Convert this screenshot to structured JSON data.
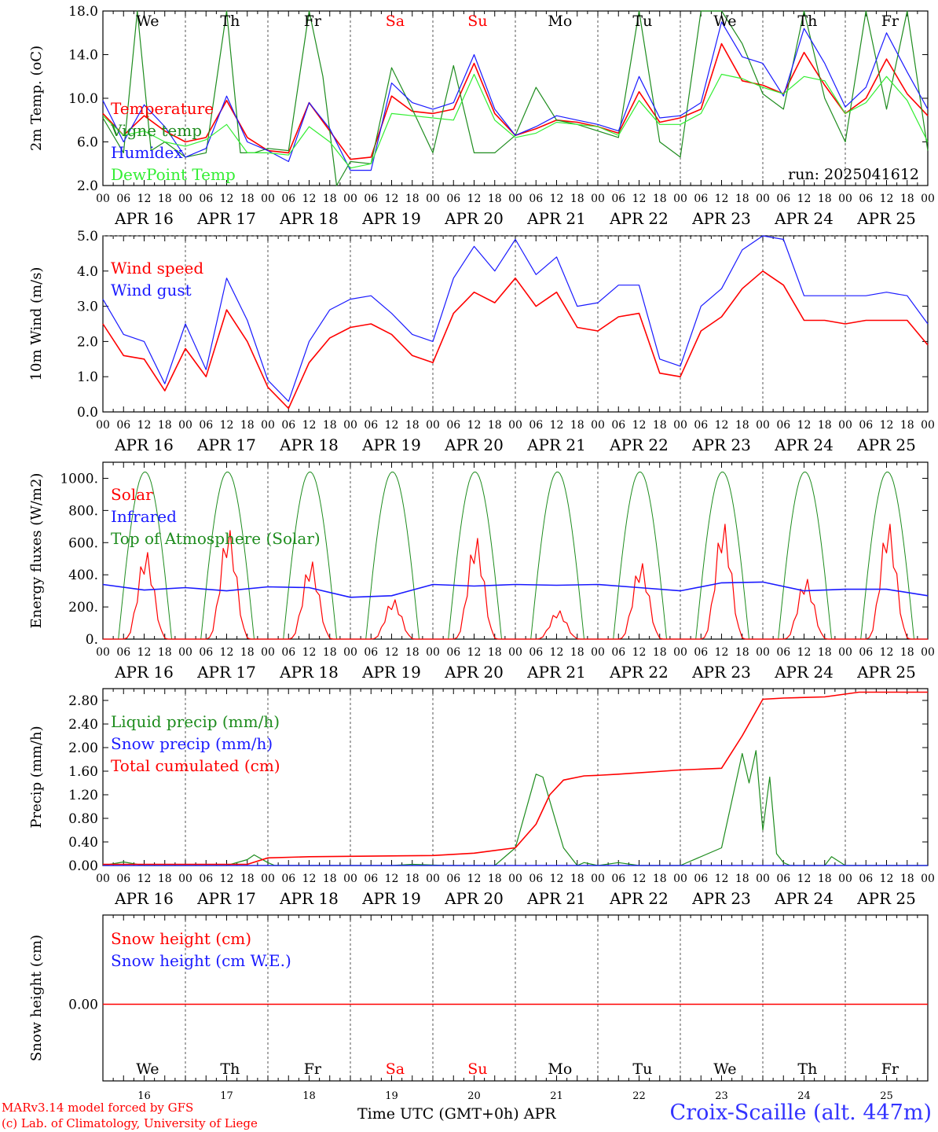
{
  "footer": {
    "credit_line1": "MARv3.14 model forced by GFS",
    "credit_line2": "(c) Lab. of Climatology, University of Liege",
    "x_title": "Time UTC (GMT+0h) APR",
    "station": "Croix-Scaille (alt. 447m)"
  },
  "colors": {
    "red": "#ff0000",
    "dark_green": "#1e8c1e",
    "blue": "#1a1aff",
    "light_green": "#33ee33",
    "axis": "#000000"
  },
  "chart_data": [
    {
      "type": "line",
      "panel": "temperature",
      "ylabel": "2m Temp. (oC)",
      "ylim": [
        2.0,
        18.0
      ],
      "yticks": [
        "2.0",
        "6.0",
        "10.0",
        "14.0",
        "18.0"
      ],
      "annotation": "run: 2025041612",
      "x_unit": "hours since APR 16 00 UTC",
      "day_names": [
        "We",
        "Th",
        "Fr",
        "Sa",
        "Su",
        "Mo",
        "Tu",
        "We",
        "Th",
        "Fr"
      ],
      "weekend_days": [
        3,
        4
      ],
      "date_labels": [
        "APR 16",
        "APR 17",
        "APR 18",
        "APR 19",
        "APR 20",
        "APR 21",
        "APR 22",
        "APR 23",
        "APR 24",
        "APR 25"
      ],
      "hour_ticks": [
        "00",
        "06",
        "12",
        "18"
      ],
      "series": [
        {
          "name": "Temperature",
          "color": "red",
          "x": [
            0,
            6,
            12,
            18,
            24,
            30,
            36,
            42,
            48,
            54,
            60,
            66,
            72,
            78,
            84,
            90,
            96,
            102,
            108,
            114,
            120,
            126,
            132,
            138,
            144,
            150,
            156,
            162,
            168,
            174,
            180,
            186,
            192,
            198,
            204,
            210,
            216,
            222,
            228,
            234,
            240
          ],
          "y": [
            8.6,
            6.6,
            8.4,
            7.0,
            6.0,
            6.4,
            9.8,
            6.4,
            5.2,
            5.0,
            9.6,
            7.0,
            4.4,
            4.6,
            10.2,
            8.8,
            8.6,
            9.0,
            13.2,
            8.6,
            6.6,
            7.2,
            8.0,
            7.8,
            7.4,
            6.8,
            10.6,
            7.8,
            8.2,
            9.0,
            15.0,
            11.6,
            11.2,
            10.4,
            14.2,
            11.2,
            8.6,
            10.0,
            13.6,
            10.4,
            8.4
          ]
        },
        {
          "name": "Vigne temp",
          "color": "dark_green",
          "x": [
            0,
            6,
            10,
            14,
            18,
            24,
            30,
            36,
            40,
            44,
            48,
            54,
            60,
            64,
            68,
            72,
            78,
            84,
            90,
            96,
            102,
            108,
            114,
            120,
            126,
            132,
            138,
            144,
            150,
            156,
            162,
            168,
            174,
            180,
            186,
            192,
            198,
            204,
            210,
            216,
            222,
            228,
            234,
            240
          ],
          "y": [
            8.2,
            5.0,
            18.0,
            5.2,
            6.0,
            4.6,
            5.0,
            18.0,
            5.0,
            5.0,
            5.4,
            5.2,
            18.0,
            12.0,
            1.5,
            4.2,
            4.0,
            12.8,
            9.0,
            5.0,
            13.0,
            5.0,
            5.0,
            6.6,
            11.0,
            8.0,
            7.6,
            7.0,
            6.4,
            18.0,
            6.0,
            4.6,
            18.0,
            18.0,
            15.0,
            10.4,
            9.0,
            18.0,
            10.0,
            6.0,
            18.0,
            9.0,
            18.0,
            5.2
          ]
        },
        {
          "name": "Humidex",
          "color": "blue",
          "x": [
            0,
            6,
            12,
            18,
            24,
            30,
            36,
            42,
            48,
            54,
            60,
            66,
            72,
            78,
            84,
            90,
            96,
            102,
            108,
            114,
            120,
            126,
            132,
            138,
            144,
            150,
            156,
            162,
            168,
            174,
            180,
            186,
            192,
            198,
            204,
            210,
            216,
            222,
            228,
            234,
            240
          ],
          "y": [
            9.8,
            6.0,
            9.4,
            7.4,
            4.6,
            5.4,
            10.2,
            6.0,
            5.2,
            4.2,
            9.6,
            7.2,
            3.4,
            3.4,
            11.4,
            9.6,
            9.0,
            9.6,
            14.0,
            9.0,
            6.6,
            7.4,
            8.4,
            8.0,
            7.6,
            7.0,
            12.0,
            8.2,
            8.4,
            9.6,
            17.0,
            13.8,
            13.2,
            10.2,
            16.4,
            13.2,
            9.2,
            11.0,
            16.0,
            12.4,
            9.0
          ]
        },
        {
          "name": "DewPoint Temp",
          "color": "light_green",
          "x": [
            0,
            6,
            12,
            18,
            24,
            30,
            36,
            42,
            48,
            54,
            60,
            66,
            72,
            78,
            84,
            90,
            96,
            102,
            108,
            114,
            120,
            126,
            132,
            138,
            144,
            150,
            156,
            162,
            168,
            174,
            180,
            186,
            192,
            198,
            204,
            210,
            216,
            222,
            228,
            234,
            240
          ],
          "y": [
            8.4,
            6.6,
            7.0,
            6.0,
            5.6,
            6.2,
            7.6,
            5.0,
            5.0,
            4.8,
            7.4,
            6.0,
            3.6,
            4.0,
            8.6,
            8.4,
            8.2,
            8.0,
            12.2,
            8.0,
            6.4,
            6.8,
            7.8,
            7.6,
            7.4,
            6.6,
            9.8,
            7.6,
            7.6,
            8.6,
            12.2,
            11.8,
            11.0,
            10.4,
            12.0,
            11.6,
            8.6,
            9.6,
            12.0,
            9.8,
            6.0
          ]
        }
      ]
    },
    {
      "type": "line",
      "panel": "wind",
      "ylabel": "10m Wind (m/s)",
      "ylim": [
        0.0,
        5.0
      ],
      "yticks": [
        "0.0",
        "1.0",
        "2.0",
        "3.0",
        "4.0",
        "5.0"
      ],
      "date_labels": [
        "APR 16",
        "APR 17",
        "APR 18",
        "APR 19",
        "APR 20",
        "APR 21",
        "APR 22",
        "APR 23",
        "APR 24",
        "APR 25"
      ],
      "hour_ticks": [
        "00",
        "06",
        "12",
        "18"
      ],
      "series": [
        {
          "name": "Wind speed",
          "color": "red",
          "x": [
            0,
            6,
            12,
            18,
            24,
            30,
            36,
            42,
            48,
            54,
            60,
            66,
            72,
            78,
            84,
            90,
            96,
            102,
            108,
            114,
            120,
            126,
            132,
            138,
            144,
            150,
            156,
            162,
            168,
            174,
            180,
            186,
            192,
            198,
            204,
            210,
            216,
            222,
            228,
            234,
            240
          ],
          "y": [
            2.5,
            1.6,
            1.5,
            0.6,
            1.8,
            1.0,
            2.9,
            2.0,
            0.7,
            0.1,
            1.4,
            2.1,
            2.4,
            2.5,
            2.2,
            1.6,
            1.4,
            2.8,
            3.4,
            3.1,
            3.8,
            3.0,
            3.4,
            2.4,
            2.3,
            2.7,
            2.8,
            1.1,
            1.0,
            2.3,
            2.7,
            3.5,
            4.0,
            3.6,
            2.6,
            2.6,
            2.5,
            2.6,
            2.6,
            2.6,
            1.9
          ]
        },
        {
          "name": "Wind gust",
          "color": "blue",
          "x": [
            0,
            6,
            12,
            18,
            24,
            30,
            36,
            42,
            48,
            54,
            60,
            66,
            72,
            78,
            84,
            90,
            96,
            102,
            108,
            114,
            120,
            126,
            132,
            138,
            144,
            150,
            156,
            162,
            168,
            174,
            180,
            186,
            192,
            198,
            204,
            210,
            216,
            222,
            228,
            234,
            240
          ],
          "y": [
            3.2,
            2.2,
            2.0,
            0.8,
            2.5,
            1.2,
            3.8,
            2.6,
            0.9,
            0.3,
            2.0,
            2.9,
            3.2,
            3.3,
            2.8,
            2.2,
            2.0,
            3.8,
            4.7,
            4.0,
            4.9,
            3.9,
            4.4,
            3.0,
            3.1,
            3.6,
            3.6,
            1.5,
            1.3,
            3.0,
            3.5,
            4.6,
            5.2,
            4.9,
            3.3,
            3.3,
            3.3,
            3.3,
            3.4,
            3.3,
            2.5
          ]
        }
      ]
    },
    {
      "type": "line",
      "panel": "energy",
      "ylabel": "Energy fluxes (W/m2)",
      "ylim": [
        0,
        1100
      ],
      "yticks": [
        "0.",
        "200.",
        "400.",
        "600.",
        "800.",
        "1000."
      ],
      "yvalues": [
        0,
        200,
        400,
        600,
        800,
        1000
      ],
      "date_labels": [
        "APR 16",
        "APR 17",
        "APR 18",
        "APR 19",
        "APR 20",
        "APR 21",
        "APR 22",
        "APR 23",
        "APR 24",
        "APR 25"
      ],
      "hour_ticks": [
        "00",
        "06",
        "12",
        "18"
      ],
      "solar_peaks": [
        550,
        690,
        490,
        250,
        640,
        180,
        480,
        730,
        380,
        730
      ],
      "toa_peak": 1040,
      "series": [
        {
          "name": "Solar",
          "color": "red"
        },
        {
          "name": "Infrared",
          "color": "blue",
          "x": [
            0,
            12,
            24,
            36,
            48,
            60,
            72,
            84,
            96,
            108,
            120,
            132,
            144,
            156,
            168,
            180,
            192,
            204,
            216,
            228,
            240
          ],
          "y": [
            340,
            305,
            320,
            300,
            325,
            320,
            260,
            270,
            340,
            330,
            340,
            335,
            340,
            320,
            300,
            350,
            355,
            300,
            310,
            310,
            270
          ]
        },
        {
          "name": "Top of Atmosphere (Solar)",
          "color": "dark_green"
        }
      ]
    },
    {
      "type": "line",
      "panel": "precip",
      "ylabel": "Precip (mm/h)",
      "ylim": [
        0.0,
        3.0
      ],
      "yticks": [
        "0.00",
        "0.40",
        "0.80",
        "1.20",
        "1.60",
        "2.00",
        "2.40",
        "2.80"
      ],
      "date_labels": [
        "APR 16",
        "APR 17",
        "APR 18",
        "APR 19",
        "APR 20",
        "APR 21",
        "APR 22",
        "APR 23",
        "APR 24",
        "APR 25"
      ],
      "hour_ticks": [
        "00",
        "06",
        "12",
        "18"
      ],
      "series": [
        {
          "name": "Liquid precip (mm/h)",
          "color": "dark_green",
          "x": [
            0,
            6,
            12,
            18,
            24,
            30,
            36,
            42,
            44,
            48,
            50,
            60,
            84,
            90,
            100,
            114,
            120,
            126,
            128,
            132,
            134,
            138,
            140,
            144,
            150,
            156,
            168,
            180,
            186,
            188,
            190,
            192,
            194,
            196,
            198,
            200,
            210,
            212,
            216,
            240
          ],
          "y": [
            0.0,
            0.06,
            0.0,
            0.0,
            0.0,
            0.0,
            0.0,
            0.1,
            0.18,
            0.05,
            0.0,
            0.0,
            0.0,
            0.02,
            0.0,
            0.0,
            0.3,
            1.55,
            1.5,
            0.7,
            0.3,
            0.0,
            0.05,
            0.0,
            0.05,
            0.0,
            0.0,
            0.3,
            1.9,
            1.4,
            1.95,
            0.6,
            1.5,
            0.2,
            0.05,
            0.0,
            0.0,
            0.15,
            0.0,
            0.0
          ]
        },
        {
          "name": "Snow precip (mm/h)",
          "color": "blue",
          "x": [
            0,
            240
          ],
          "y": [
            0,
            0
          ]
        },
        {
          "name": "Total cumulated (cm)",
          "color": "red",
          "x": [
            0,
            42,
            48,
            60,
            96,
            108,
            120,
            126,
            130,
            134,
            140,
            144,
            150,
            168,
            180,
            186,
            192,
            198,
            210,
            220,
            240
          ],
          "y": [
            0.02,
            0.02,
            0.13,
            0.15,
            0.17,
            0.21,
            0.3,
            0.7,
            1.2,
            1.45,
            1.52,
            1.53,
            1.55,
            1.62,
            1.65,
            2.2,
            2.82,
            2.84,
            2.86,
            2.94,
            2.94
          ]
        }
      ]
    },
    {
      "type": "line",
      "panel": "snow",
      "ylabel": "Snow height (cm)",
      "yticks": [
        "0.00"
      ],
      "day_names": [
        "We",
        "Th",
        "Fr",
        "Sa",
        "Su",
        "Mo",
        "Tu",
        "We",
        "Th",
        "Fr"
      ],
      "weekend_days": [
        3,
        4
      ],
      "day_numbers": [
        "16",
        "17",
        "18",
        "19",
        "20",
        "21",
        "22",
        "23",
        "24",
        "25"
      ],
      "series": [
        {
          "name": "Snow height (cm)",
          "color": "red",
          "x": [
            0,
            240
          ],
          "y": [
            0,
            0
          ]
        },
        {
          "name": "Snow height (cm W.E.)",
          "color": "blue",
          "x": [
            0,
            240
          ],
          "y": [
            0,
            0
          ]
        }
      ]
    }
  ]
}
